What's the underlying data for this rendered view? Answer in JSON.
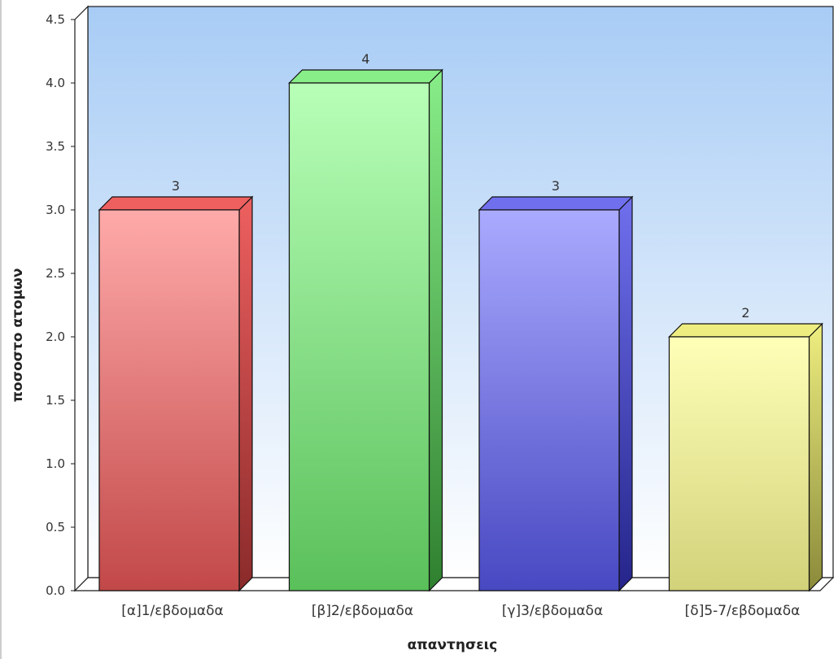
{
  "chart_data": {
    "type": "bar",
    "title": "",
    "xlabel": "απαντησεις",
    "ylabel": "ποσοστο ατομων",
    "categories": [
      "[α]1/εβδομαδα",
      "[β]2/εβδομαδα",
      "[γ]3/εβδομαδα",
      "[δ]5-7/εβδομαδα"
    ],
    "values": [
      3,
      4,
      3,
      2
    ],
    "value_labels": [
      "3",
      "4",
      "3",
      "2"
    ],
    "ylim": [
      0,
      4.5
    ],
    "yticks": [
      "0.0",
      "0.5",
      "1.0",
      "1.5",
      "2.0",
      "2.5",
      "3.0",
      "3.5",
      "4.0",
      "4.5"
    ],
    "grid": false,
    "style": "3d",
    "colors": [
      {
        "front_top": "#ffaaaa",
        "front_bottom": "#c24848",
        "side": "#8a2a2a",
        "top": "#ee6060"
      },
      {
        "front_top": "#b8ffb8",
        "front_bottom": "#5ac05a",
        "side": "#2f7f2f",
        "top": "#88ee88"
      },
      {
        "front_top": "#aaaaff",
        "front_bottom": "#4848c2",
        "side": "#24248a",
        "top": "#7070ee"
      },
      {
        "front_top": "#ffffb8",
        "front_bottom": "#d2d27a",
        "side": "#8a8a3a",
        "top": "#eeee80"
      }
    ],
    "background": {
      "top": "#a8ccf5",
      "bottom": "#ffffff"
    }
  }
}
